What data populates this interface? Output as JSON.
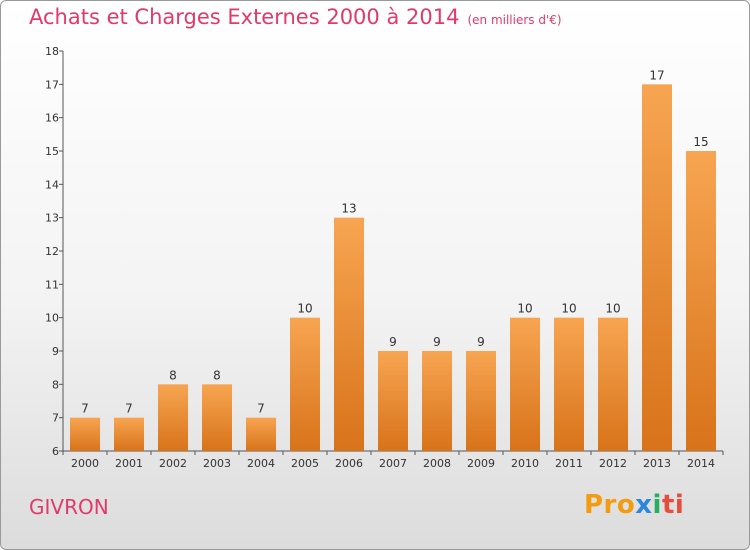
{
  "chart_data": {
    "type": "bar",
    "title": "Achats et Charges Externes 2000 à 2014",
    "subtitle": "(en milliers d'€)",
    "categories": [
      "2000",
      "2001",
      "2002",
      "2003",
      "2004",
      "2005",
      "2006",
      "2007",
      "2008",
      "2009",
      "2010",
      "2011",
      "2012",
      "2013",
      "2014"
    ],
    "values": [
      7,
      7,
      8,
      8,
      7,
      10,
      13,
      9,
      9,
      9,
      10,
      10,
      10,
      17,
      15
    ],
    "ylim": [
      6,
      18
    ],
    "yticks": [
      6,
      7,
      8,
      9,
      10,
      11,
      12,
      13,
      14,
      15,
      16,
      17,
      18
    ],
    "xlabel": "",
    "ylabel": "",
    "grid": false,
    "bar_color_top": "#f7a552",
    "bar_color_bottom": "#d8731a"
  },
  "footer": {
    "commune": "GIVRON",
    "logo_parts": [
      "Pro",
      "x",
      "i",
      "ti"
    ]
  },
  "colors": {
    "title": "#e13a6a"
  }
}
